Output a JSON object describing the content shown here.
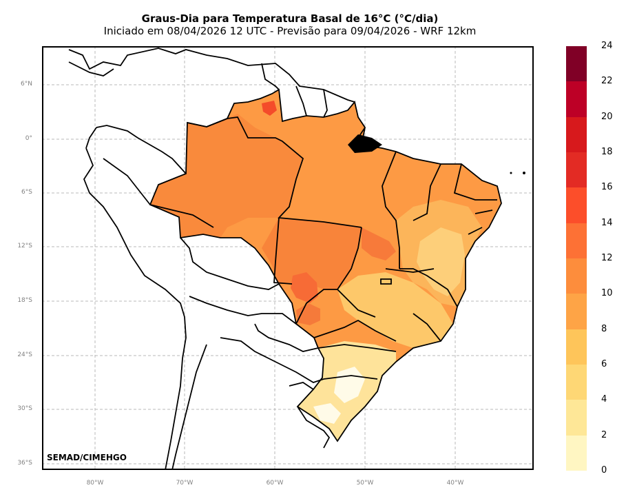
{
  "title": "Graus-Dia para Temperatura Basal de 16°C (°C/dia)",
  "subtitle": "Iniciado em 08/04/2026 12 UTC - Previsão para 09/04/2026 - WRF 12km",
  "credit": "SEMAD/CIMEHGO",
  "lat_labels": [
    "6°N",
    "0°",
    "6°S",
    "12°S",
    "18°S",
    "24°S",
    "30°S",
    "36°S"
  ],
  "lon_labels": [
    "80°W",
    "70°W",
    "60°W",
    "50°W",
    "40°W"
  ],
  "colorbar": {
    "ticks": [
      "24",
      "22",
      "20",
      "18",
      "16",
      "14",
      "12",
      "10",
      "8",
      "6",
      "4",
      "2",
      "0"
    ],
    "colors": [
      "#800026",
      "#bd0026",
      "#d7191c",
      "#e31a1c",
      "#fc4e2a",
      "#fd7135",
      "#fd8d3c",
      "#fea446",
      "#feb24c",
      "#fec966",
      "#fed976",
      "#ffe697",
      "#ffffcc"
    ]
  }
}
